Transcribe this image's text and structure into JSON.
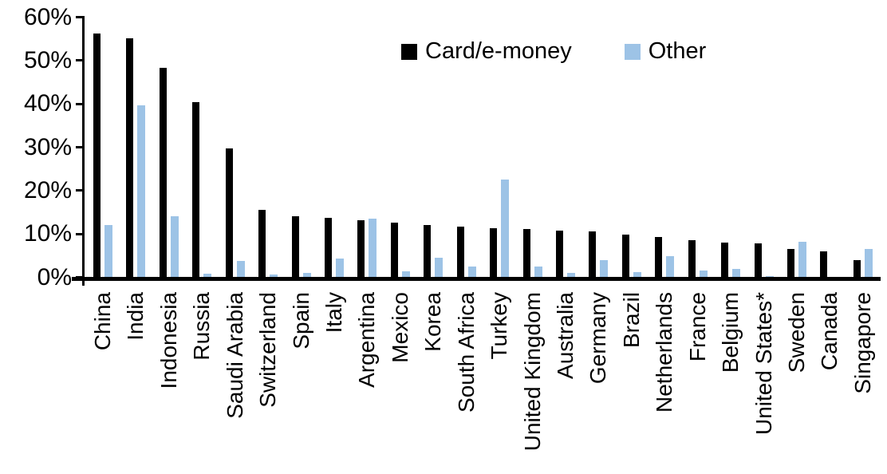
{
  "chart_data": {
    "type": "bar",
    "title": "",
    "xlabel": "",
    "ylabel": "",
    "ylim": [
      0,
      60
    ],
    "y_tick_step": 10,
    "y_tick_labels": [
      "0%",
      "10%",
      "20%",
      "30%",
      "40%",
      "50%",
      "60%"
    ],
    "grid": false,
    "legend_position": "top-center",
    "categories": [
      "China",
      "India",
      "Indonesia",
      "Russia",
      "Saudi Arabia",
      "Switzerland",
      "Spain",
      "Italy",
      "Argentina",
      "Mexico",
      "Korea",
      "South Africa",
      "Turkey",
      "United Kingdom",
      "Australia",
      "Germany",
      "Brazil",
      "Netherlands",
      "France",
      "Belgium",
      "United States*",
      "Sweden",
      "Canada",
      "Singapore"
    ],
    "series": [
      {
        "name": "Card/e-money",
        "color": "#000000",
        "values": [
          56.3,
          55.1,
          48.3,
          40.4,
          29.7,
          15.5,
          14.1,
          13.8,
          13.1,
          12.7,
          12.1,
          11.6,
          11.4,
          11.2,
          10.8,
          10.5,
          9.8,
          9.3,
          8.6,
          8.0,
          7.9,
          6.5,
          6.0,
          3.9
        ]
      },
      {
        "name": "Other",
        "color": "#9DC3E6",
        "values": [
          12.1,
          39.7,
          14.1,
          0.9,
          3.8,
          0.7,
          1.0,
          4.4,
          13.6,
          1.3,
          4.5,
          2.4,
          22.5,
          2.4,
          1.0,
          3.9,
          1.2,
          4.8,
          1.6,
          2.0,
          0.2,
          8.2,
          0,
          6.6
        ]
      }
    ]
  }
}
